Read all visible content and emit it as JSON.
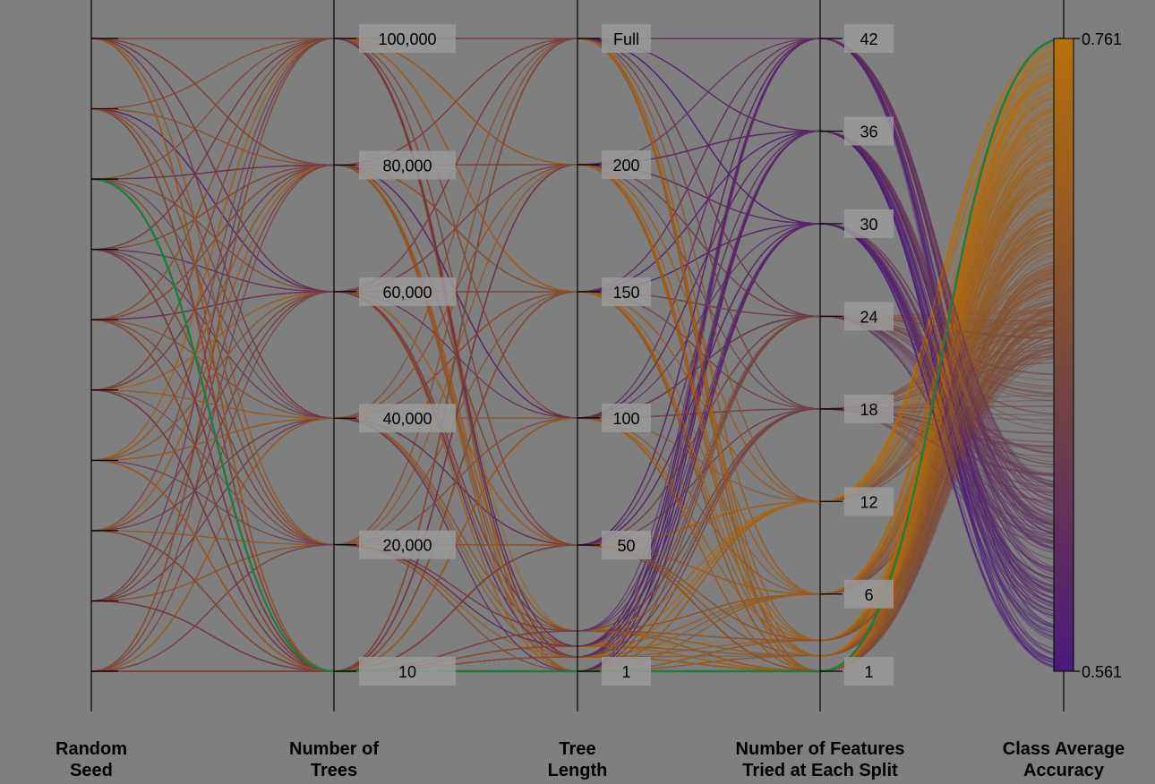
{
  "chart_data": {
    "type": "parallel-coordinates",
    "title": "",
    "axes": [
      {
        "id": "seed",
        "title": [
          "Random",
          "Seed"
        ],
        "ticks": [],
        "levels": 10
      },
      {
        "id": "trees",
        "title": [
          "Number of",
          "Trees"
        ],
        "ticks": [
          "100,000",
          "80,000",
          "60,000",
          "40,000",
          "20,000",
          "10"
        ],
        "tick_values": [
          100000,
          80000,
          60000,
          40000,
          20000,
          10
        ],
        "range": [
          10,
          100000
        ]
      },
      {
        "id": "length",
        "title": [
          "Tree",
          "Length"
        ],
        "ticks": [
          "Full",
          "200",
          "150",
          "100",
          "50",
          "1"
        ],
        "categorical_levels": [
          "1",
          "5",
          "10",
          "25",
          "50",
          "100",
          "150",
          "200",
          "Full"
        ]
      },
      {
        "id": "features",
        "title": [
          "Number of Features",
          "Tried at Each Split"
        ],
        "ticks": [
          "42",
          "36",
          "30",
          "24",
          "18",
          "12",
          "6",
          "1"
        ],
        "tick_values": [
          42,
          36,
          30,
          24,
          18,
          12,
          6,
          1
        ],
        "range": [
          1,
          42
        ]
      },
      {
        "id": "accuracy",
        "title": [
          "Class Average",
          "Accuracy"
        ],
        "colorbar": true,
        "ticks": [
          "0.761",
          "0.561"
        ],
        "range": [
          0.561,
          0.761
        ]
      }
    ],
    "color_scale": {
      "low": "#4a1a7a",
      "mid": "#7a4a3a",
      "high": "#b8700a",
      "metric": "Class Average Accuracy"
    },
    "highlight": {
      "color": "#1e7d3c",
      "values": {
        "seed_level": 7,
        "trees": 10,
        "length": "1",
        "features": 1,
        "accuracy": 0.761
      }
    },
    "grid": false,
    "legend": "colorbar-right"
  }
}
